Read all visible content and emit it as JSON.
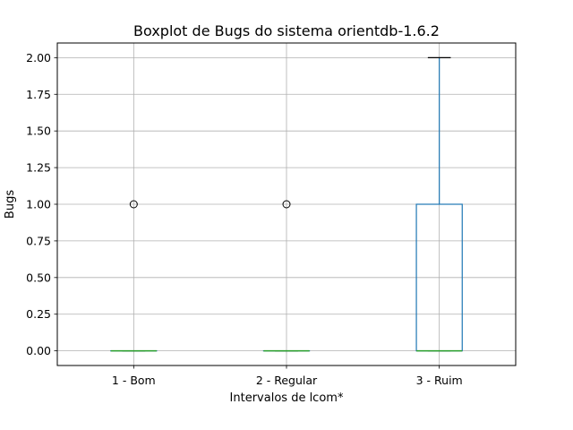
{
  "chart_data": {
    "type": "boxplot",
    "title": "Boxplot de Bugs do sistema orientdb-1.6.2",
    "xlabel": "Intervalos de lcom*",
    "ylabel": "Bugs",
    "ylim": [
      -0.1,
      2.1
    ],
    "yticks": [
      0.0,
      0.25,
      0.5,
      0.75,
      1.0,
      1.25,
      1.5,
      1.75,
      2.0
    ],
    "ytick_labels": [
      "0.00",
      "0.25",
      "0.50",
      "0.75",
      "1.00",
      "1.25",
      "1.50",
      "1.75",
      "2.00"
    ],
    "grid": true,
    "categories": [
      "1 - Bom",
      "2 - Regular",
      "3 - Ruim"
    ],
    "boxes": [
      {
        "category": "1 - Bom",
        "whislo": 0,
        "q1": 0,
        "median": 0,
        "q3": 0,
        "whishi": 0,
        "fliers": [
          1
        ]
      },
      {
        "category": "2 - Regular",
        "whislo": 0,
        "q1": 0,
        "median": 0,
        "q3": 0,
        "whishi": 0,
        "fliers": [
          1
        ]
      },
      {
        "category": "3 - Ruim",
        "whislo": 0,
        "q1": 0,
        "median": 0,
        "q3": 1,
        "whishi": 2,
        "fliers": []
      }
    ],
    "colors": {
      "box": "#1f77b4",
      "median": "#2ca02c",
      "whisker": "#1f77b4",
      "cap": "#000000",
      "flier": "#000000",
      "grid": "#b0b0b0",
      "axes": "#000000"
    }
  }
}
